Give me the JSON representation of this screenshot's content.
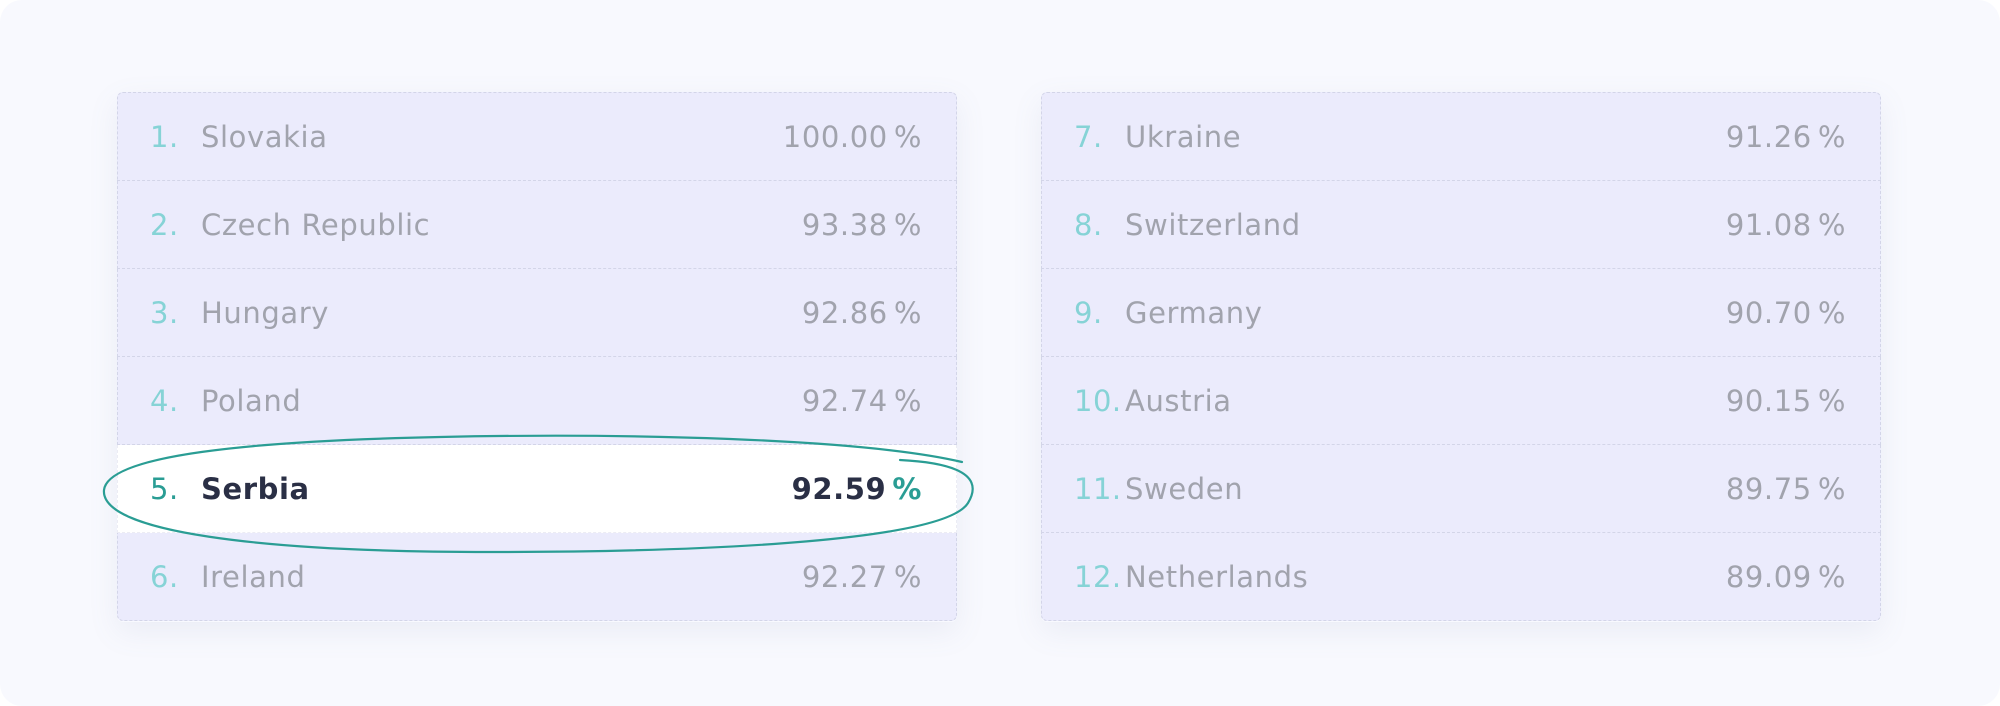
{
  "rankings": {
    "left": [
      {
        "rank": "1.",
        "country": "Slovakia",
        "value": "100.00",
        "unit": "%"
      },
      {
        "rank": "2.",
        "country": "Czech Republic",
        "value": "93.38",
        "unit": "%"
      },
      {
        "rank": "3.",
        "country": "Hungary",
        "value": "92.86",
        "unit": "%"
      },
      {
        "rank": "4.",
        "country": "Poland",
        "value": "92.74",
        "unit": "%"
      },
      {
        "rank": "5.",
        "country": "Serbia",
        "value": "92.59",
        "unit": "%",
        "highlighted": true
      },
      {
        "rank": "6.",
        "country": "Ireland",
        "value": "92.27",
        "unit": "%"
      }
    ],
    "right": [
      {
        "rank": "7.",
        "country": "Ukraine",
        "value": "91.26",
        "unit": "%"
      },
      {
        "rank": "8.",
        "country": "Switzerland",
        "value": "91.08",
        "unit": "%"
      },
      {
        "rank": "9.",
        "country": "Germany",
        "value": "90.70",
        "unit": "%"
      },
      {
        "rank": "10.",
        "country": "Austria",
        "value": "90.15",
        "unit": "%"
      },
      {
        "rank": "11.",
        "country": "Sweden",
        "value": "89.75",
        "unit": "%"
      },
      {
        "rank": "12.",
        "country": "Netherlands",
        "value": "89.09",
        "unit": "%"
      }
    ]
  },
  "colors": {
    "row_background": "#ebebfc",
    "highlight_background": "#ffffff",
    "rank_color": "#86d3d6",
    "highlight_accent": "#2a9d94",
    "muted_text": "#a1a3ad",
    "highlight_text": "#2a2f45"
  }
}
